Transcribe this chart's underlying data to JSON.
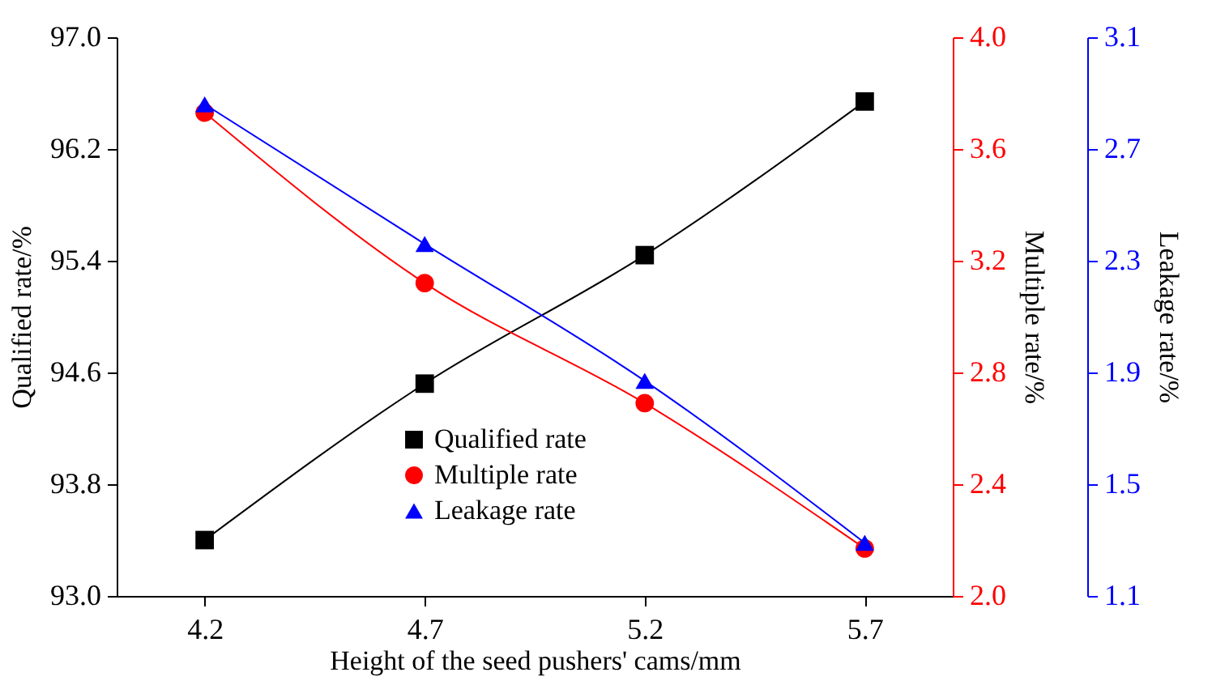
{
  "chart_data": {
    "type": "line",
    "xlabel": "Height of the seed pushers' cams/mm",
    "ylabel": "Qualified rate/%",
    "y2label": "Multiple rate/%",
    "y3label": "Leakage rate/%",
    "x": [
      4.2,
      4.7,
      5.2,
      5.7
    ],
    "xlim": [
      4.0,
      5.9
    ],
    "xticks": [
      4.2,
      4.7,
      5.2,
      5.7
    ],
    "ylim": [
      93.0,
      97.0
    ],
    "yticks": [
      {
        "value": 93,
        "label": "93.0"
      },
      93.8,
      94.6,
      95.4,
      96.2,
      {
        "value": 97,
        "label": "97.0"
      }
    ],
    "y2lim": [
      2.0,
      4.0
    ],
    "y2ticks": [
      {
        "value": 2,
        "label": "2.0"
      },
      2.4,
      2.8,
      3.2,
      3.6,
      {
        "value": 4,
        "label": "4.0"
      }
    ],
    "y3lim": [
      1.1,
      3.1
    ],
    "y3ticks": [
      1.1,
      1.5,
      1.9,
      2.3,
      2.7,
      3.1
    ],
    "legend": "bottom",
    "grid": false,
    "series": [
      {
        "name": "Qualified rate",
        "color": "#000000",
        "marker": "square",
        "axis": "y",
        "values": [
          93.4,
          94.52,
          95.44,
          96.54
        ]
      },
      {
        "name": "Multiple rate",
        "color": "#ff0000",
        "marker": "circle",
        "axis": "y2",
        "values": [
          3.73,
          3.12,
          2.69,
          2.17
        ]
      },
      {
        "name": "Leakage rate",
        "color": "#0000ff",
        "marker": "triangle",
        "axis": "y3",
        "values": [
          2.86,
          2.36,
          1.87,
          1.29
        ]
      }
    ]
  }
}
